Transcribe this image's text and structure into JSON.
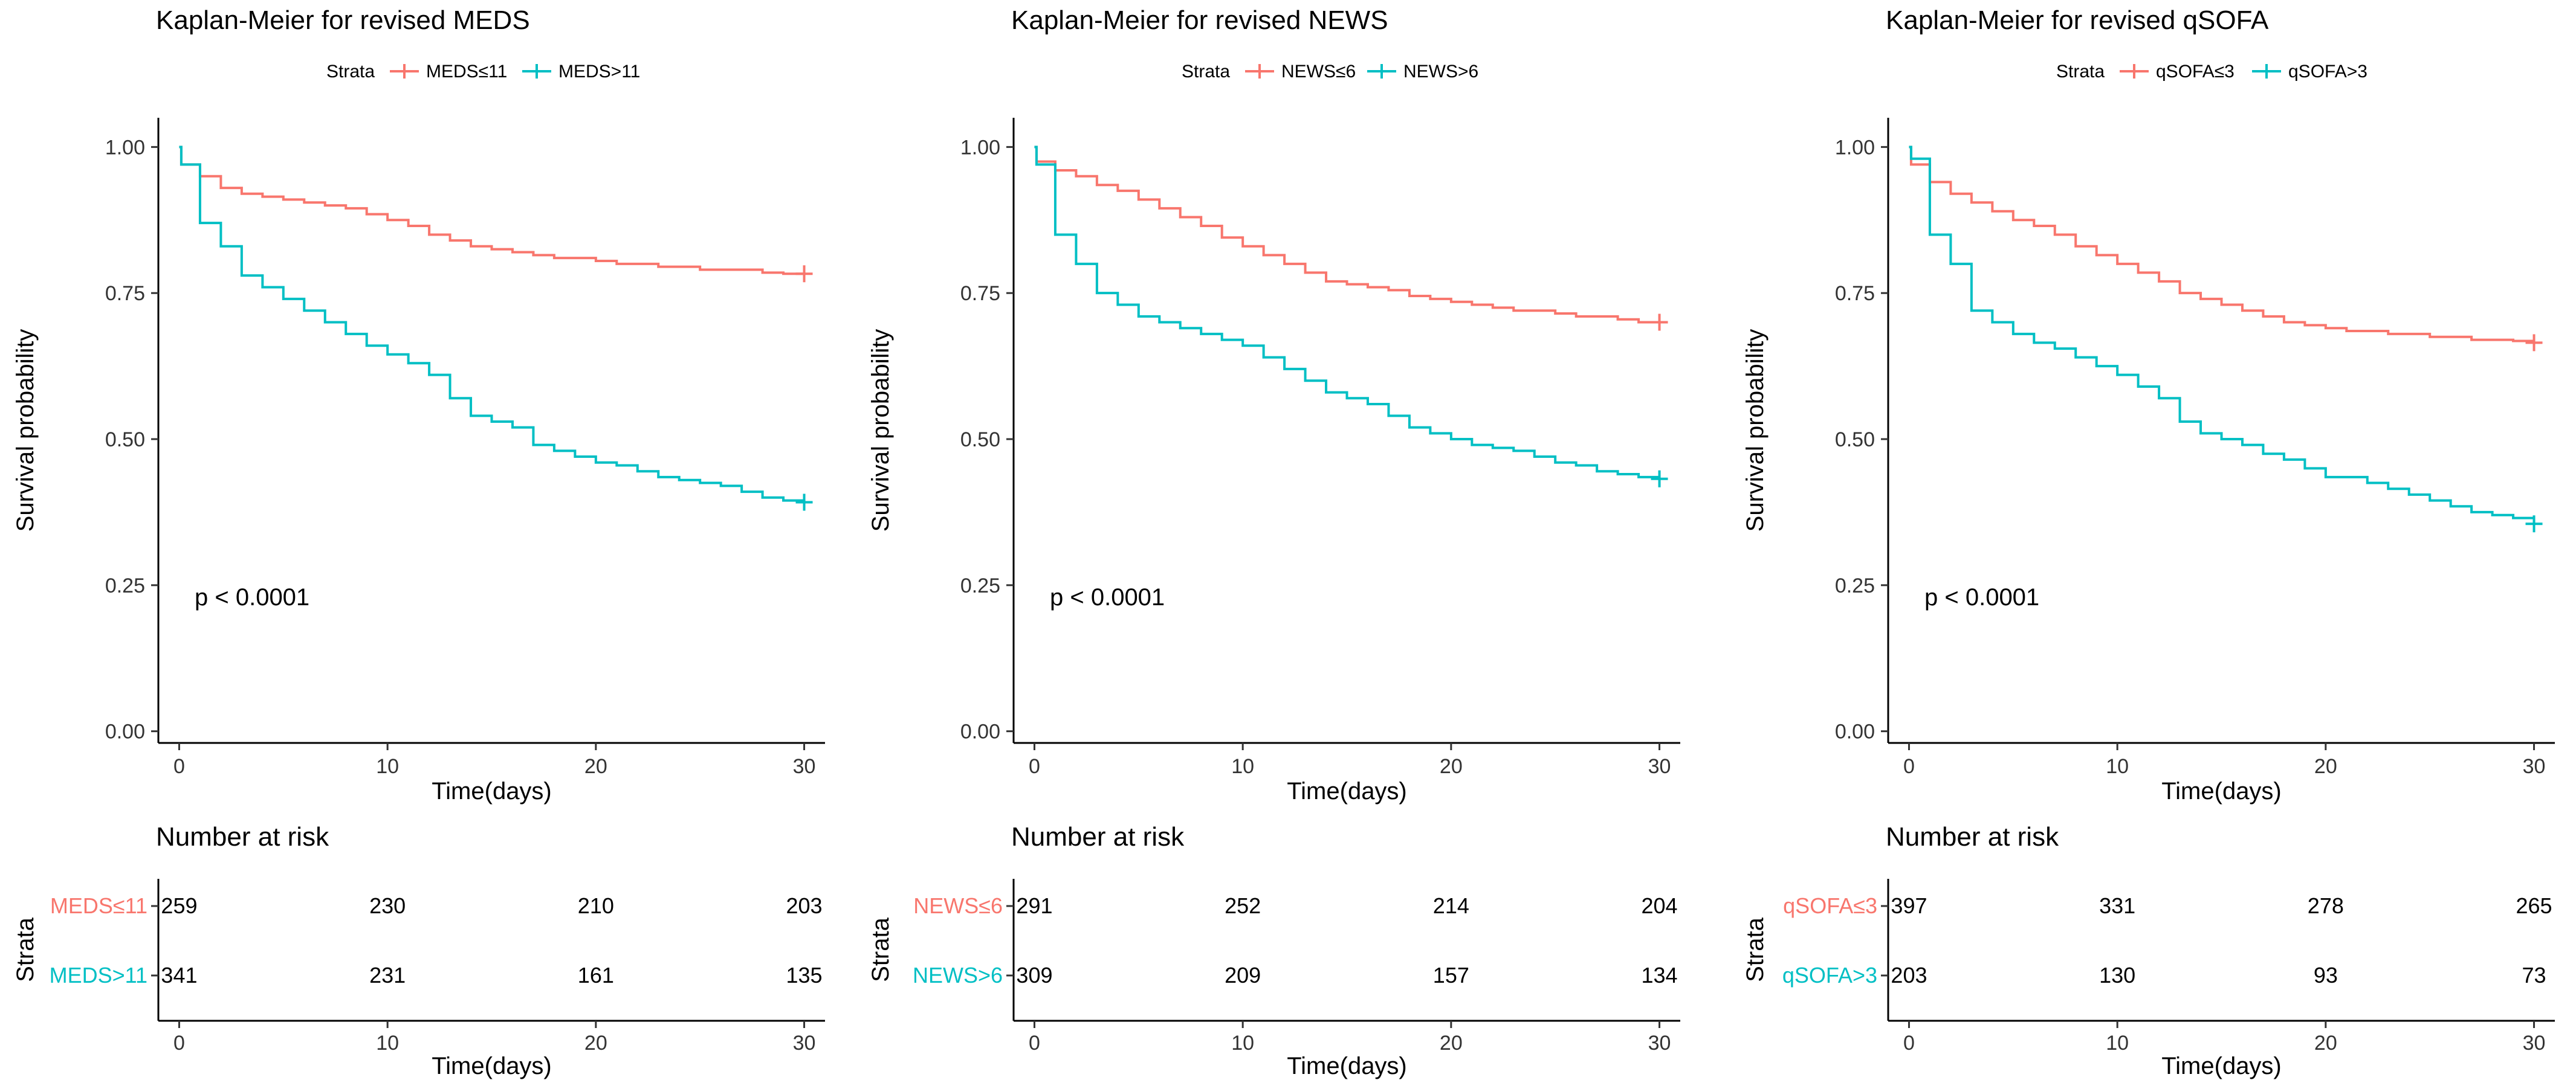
{
  "chart_data": [
    {
      "type": "line",
      "title": "Kaplan-Meier for revised MEDS",
      "legend_title": "Strata",
      "legend_position": "top",
      "xlabel": "Time(days)",
      "ylabel": "Survival probability",
      "xlim": [
        -1,
        31
      ],
      "ylim": [
        -0.02,
        1.05
      ],
      "x_ticks": [
        0,
        10,
        20,
        30
      ],
      "y_ticks": [
        0,
        0.25,
        0.5,
        0.75,
        1.0
      ],
      "y_tick_labels": [
        "0.00",
        "0.25",
        "0.50",
        "0.75",
        "1.00"
      ],
      "grid": false,
      "pvalue": "p < 0.0001",
      "series": [
        {
          "name": "MEDS≤11",
          "color": "#F8766D",
          "x": [
            0,
            0.1,
            1,
            2,
            3,
            4,
            5,
            6,
            7,
            8,
            9,
            10,
            11,
            12,
            13,
            14,
            15,
            16,
            17,
            18,
            19,
            20,
            21,
            22,
            23,
            24,
            25,
            26,
            27,
            28,
            29,
            30
          ],
          "y": [
            1.0,
            0.97,
            0.95,
            0.93,
            0.92,
            0.915,
            0.91,
            0.905,
            0.9,
            0.895,
            0.885,
            0.875,
            0.865,
            0.85,
            0.84,
            0.83,
            0.825,
            0.82,
            0.815,
            0.81,
            0.81,
            0.805,
            0.8,
            0.8,
            0.795,
            0.795,
            0.79,
            0.79,
            0.79,
            0.785,
            0.783,
            0.783
          ]
        },
        {
          "name": "MEDS>11",
          "color": "#00BFC4",
          "x": [
            0,
            0.1,
            1,
            2,
            3,
            4,
            5,
            6,
            7,
            8,
            9,
            10,
            11,
            12,
            13,
            14,
            15,
            16,
            17,
            18,
            19,
            20,
            21,
            22,
            23,
            24,
            25,
            26,
            27,
            28,
            29,
            30
          ],
          "y": [
            1.0,
            0.97,
            0.87,
            0.83,
            0.78,
            0.76,
            0.74,
            0.72,
            0.7,
            0.68,
            0.66,
            0.645,
            0.63,
            0.61,
            0.57,
            0.54,
            0.53,
            0.52,
            0.49,
            0.48,
            0.47,
            0.46,
            0.455,
            0.445,
            0.435,
            0.43,
            0.425,
            0.42,
            0.41,
            0.4,
            0.395,
            0.392
          ]
        }
      ],
      "risk_table": {
        "title": "Number at risk",
        "ylabel": "Strata",
        "xlabel": "Time(days)",
        "rows": [
          {
            "name": "MEDS≤11",
            "values": [
              259,
              230,
              210,
              203
            ]
          },
          {
            "name": "MEDS>11",
            "values": [
              341,
              231,
              161,
              135
            ]
          }
        ]
      }
    },
    {
      "type": "line",
      "title": "Kaplan-Meier for revised NEWS",
      "legend_title": "Strata",
      "legend_position": "top",
      "xlabel": "Time(days)",
      "ylabel": "Survival probability",
      "xlim": [
        -1,
        31
      ],
      "ylim": [
        -0.02,
        1.05
      ],
      "x_ticks": [
        0,
        10,
        20,
        30
      ],
      "y_ticks": [
        0,
        0.25,
        0.5,
        0.75,
        1.0
      ],
      "y_tick_labels": [
        "0.00",
        "0.25",
        "0.50",
        "0.75",
        "1.00"
      ],
      "grid": false,
      "pvalue": "p < 0.0001",
      "series": [
        {
          "name": "NEWS≤6",
          "color": "#F8766D",
          "x": [
            0,
            0.1,
            1,
            2,
            3,
            4,
            5,
            6,
            7,
            8,
            9,
            10,
            11,
            12,
            13,
            14,
            15,
            16,
            17,
            18,
            19,
            20,
            21,
            22,
            23,
            24,
            25,
            26,
            27,
            28,
            29,
            30
          ],
          "y": [
            1.0,
            0.975,
            0.96,
            0.95,
            0.935,
            0.925,
            0.91,
            0.895,
            0.88,
            0.865,
            0.845,
            0.83,
            0.815,
            0.8,
            0.785,
            0.77,
            0.765,
            0.76,
            0.755,
            0.745,
            0.74,
            0.735,
            0.73,
            0.725,
            0.72,
            0.72,
            0.715,
            0.71,
            0.71,
            0.705,
            0.7,
            0.7
          ]
        },
        {
          "name": "NEWS>6",
          "color": "#00BFC4",
          "x": [
            0,
            0.1,
            1,
            2,
            3,
            4,
            5,
            6,
            7,
            8,
            9,
            10,
            11,
            12,
            13,
            14,
            15,
            16,
            17,
            18,
            19,
            20,
            21,
            22,
            23,
            24,
            25,
            26,
            27,
            28,
            29,
            30
          ],
          "y": [
            1.0,
            0.97,
            0.85,
            0.8,
            0.75,
            0.73,
            0.71,
            0.7,
            0.69,
            0.68,
            0.67,
            0.66,
            0.64,
            0.62,
            0.6,
            0.58,
            0.57,
            0.56,
            0.54,
            0.52,
            0.51,
            0.5,
            0.49,
            0.485,
            0.48,
            0.47,
            0.46,
            0.455,
            0.445,
            0.44,
            0.435,
            0.432
          ]
        }
      ],
      "risk_table": {
        "title": "Number at risk",
        "ylabel": "Strata",
        "xlabel": "Time(days)",
        "rows": [
          {
            "name": "NEWS≤6",
            "values": [
              291,
              252,
              214,
              204
            ]
          },
          {
            "name": "NEWS>6",
            "values": [
              309,
              209,
              157,
              134
            ]
          }
        ]
      }
    },
    {
      "type": "line",
      "title": "Kaplan-Meier for revised qSOFA",
      "legend_title": "Strata",
      "legend_position": "top",
      "xlabel": "Time(days)",
      "ylabel": "Survival probability",
      "xlim": [
        -1,
        31
      ],
      "ylim": [
        -0.02,
        1.05
      ],
      "x_ticks": [
        0,
        10,
        20,
        30
      ],
      "y_ticks": [
        0,
        0.25,
        0.5,
        0.75,
        1.0
      ],
      "y_tick_labels": [
        "0.00",
        "0.25",
        "0.50",
        "0.75",
        "1.00"
      ],
      "grid": false,
      "pvalue": "p < 0.0001",
      "series": [
        {
          "name": "qSOFA≤3",
          "color": "#F8766D",
          "x": [
            0,
            0.1,
            1,
            2,
            3,
            4,
            5,
            6,
            7,
            8,
            9,
            10,
            11,
            12,
            13,
            14,
            15,
            16,
            17,
            18,
            19,
            20,
            21,
            22,
            23,
            24,
            25,
            26,
            27,
            28,
            29,
            30
          ],
          "y": [
            1.0,
            0.97,
            0.94,
            0.92,
            0.905,
            0.89,
            0.875,
            0.865,
            0.85,
            0.83,
            0.815,
            0.8,
            0.785,
            0.77,
            0.75,
            0.74,
            0.73,
            0.72,
            0.71,
            0.7,
            0.695,
            0.69,
            0.685,
            0.685,
            0.68,
            0.68,
            0.675,
            0.675,
            0.67,
            0.67,
            0.668,
            0.665
          ]
        },
        {
          "name": "qSOFA>3",
          "color": "#00BFC4",
          "x": [
            0,
            0.1,
            1,
            2,
            3,
            4,
            5,
            6,
            7,
            8,
            9,
            10,
            11,
            12,
            13,
            14,
            15,
            16,
            17,
            18,
            19,
            20,
            21,
            22,
            23,
            24,
            25,
            26,
            27,
            28,
            29,
            30
          ],
          "y": [
            1.0,
            0.98,
            0.85,
            0.8,
            0.72,
            0.7,
            0.68,
            0.665,
            0.655,
            0.64,
            0.625,
            0.61,
            0.59,
            0.57,
            0.53,
            0.51,
            0.5,
            0.49,
            0.475,
            0.465,
            0.45,
            0.435,
            0.435,
            0.425,
            0.415,
            0.405,
            0.395,
            0.385,
            0.375,
            0.37,
            0.365,
            0.355
          ]
        }
      ],
      "risk_table": {
        "title": "Number at risk",
        "ylabel": "Strata",
        "xlabel": "Time(days)",
        "rows": [
          {
            "name": "qSOFA≤3",
            "values": [
              397,
              331,
              278,
              265
            ]
          },
          {
            "name": "qSOFA>3",
            "values": [
              203,
              130,
              93,
              73
            ]
          }
        ]
      }
    }
  ]
}
